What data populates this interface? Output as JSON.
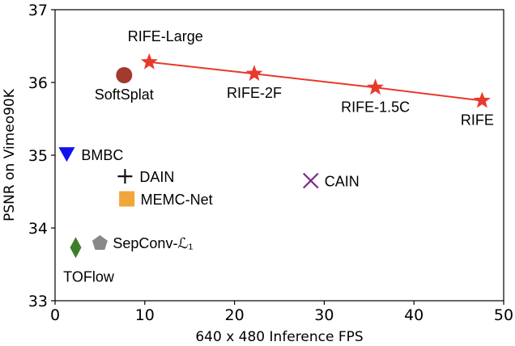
{
  "chart_data": {
    "type": "scatter",
    "title": "",
    "xlabel": "640 x 480 Inference FPS",
    "ylabel": "PSNR on Vimeo90K",
    "xlim": [
      0,
      50
    ],
    "ylim": [
      33,
      37
    ],
    "xticks": [
      "0",
      "10",
      "20",
      "30",
      "40",
      "50"
    ],
    "yticks": [
      "33",
      "34",
      "35",
      "36",
      "37"
    ],
    "grid": false,
    "series": [
      {
        "name": "RIFE",
        "marker": "star",
        "color": "#e8392a",
        "line": true,
        "points": [
          {
            "x": 10.5,
            "y": 36.28,
            "label": "RIFE-Large"
          },
          {
            "x": 22.2,
            "y": 36.12,
            "label": "RIFE-2F"
          },
          {
            "x": 35.7,
            "y": 35.93,
            "label": "RIFE-1.5C"
          },
          {
            "x": 47.6,
            "y": 35.75,
            "label": "RIFE"
          }
        ]
      },
      {
        "name": "SoftSplat",
        "marker": "circle",
        "color": "#a23a2e",
        "points": [
          {
            "x": 7.7,
            "y": 36.1,
            "label": "SoftSplat"
          }
        ]
      },
      {
        "name": "BMBC",
        "marker": "triangle-down",
        "color": "#1111ee",
        "points": [
          {
            "x": 1.3,
            "y": 35.01,
            "label": "BMBC"
          }
        ]
      },
      {
        "name": "DAIN",
        "marker": "plus",
        "color": "#111111",
        "points": [
          {
            "x": 7.8,
            "y": 34.71,
            "label": "DAIN"
          }
        ]
      },
      {
        "name": "CAIN",
        "marker": "x",
        "color": "#7a2a8a",
        "points": [
          {
            "x": 28.5,
            "y": 34.65,
            "label": "CAIN"
          }
        ]
      },
      {
        "name": "MEMC-Net",
        "marker": "square",
        "color": "#f0a63a",
        "points": [
          {
            "x": 8.0,
            "y": 34.4,
            "label": "MEMC-Net"
          }
        ]
      },
      {
        "name": "SepConv-L1",
        "marker": "pentagon",
        "color": "#888888",
        "points": [
          {
            "x": 5.0,
            "y": 33.79,
            "label": "SepConv-ℒ₁"
          }
        ]
      },
      {
        "name": "TOFlow",
        "marker": "diamond",
        "color": "#3e7d2a",
        "points": [
          {
            "x": 2.3,
            "y": 33.73,
            "label": "TOFlow"
          }
        ]
      }
    ]
  }
}
